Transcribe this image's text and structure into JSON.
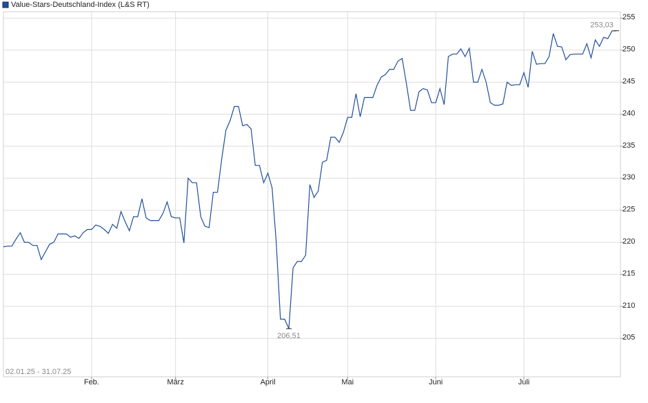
{
  "chart_data": {
    "type": "line",
    "title": "Value-Stars-Deutschland-Index (L&S RT)",
    "subtitle": "02.01.25 - 31.07.25",
    "series": [
      {
        "name": "Value-Stars-Deutschland-Index (L&S RT)",
        "color": "#1f4e99",
        "values": [
          219.3,
          219.4,
          219.4,
          220.5,
          221.5,
          220.0,
          220.0,
          219.5,
          219.5,
          217.3,
          218.5,
          219.7,
          220.0,
          221.3,
          221.3,
          221.3,
          220.8,
          221.0,
          220.6,
          221.5,
          222.0,
          222.0,
          222.7,
          222.5,
          222.0,
          221.4,
          222.8,
          222.2,
          224.8,
          223.2,
          221.8,
          224.0,
          224.0,
          226.8,
          223.8,
          223.4,
          223.4,
          223.4,
          224.5,
          226.3,
          224.0,
          223.8,
          223.8,
          219.9,
          230.0,
          229.3,
          229.3,
          224.0,
          222.5,
          222.3,
          227.8,
          227.8,
          233.0,
          237.5,
          239.0,
          241.2,
          241.2,
          238.2,
          238.4,
          237.7,
          232.0,
          232.0,
          229.3,
          230.8,
          228.5,
          220.0,
          208.0,
          208.0,
          206.51,
          216.0,
          217.0,
          217.0,
          218.0,
          229.0,
          227.0,
          228.0,
          232.5,
          232.8,
          236.4,
          236.4,
          235.6,
          237.2,
          239.5,
          239.5,
          243.2,
          239.6,
          242.6,
          242.6,
          242.6,
          244.5,
          245.8,
          246.2,
          247.0,
          247.0,
          248.3,
          248.7,
          244.8,
          240.6,
          240.6,
          243.5,
          244.0,
          243.8,
          241.8,
          241.8,
          244.0,
          241.5,
          249.0,
          249.4,
          249.4,
          250.2,
          249.0,
          250.3,
          245.0,
          245.0,
          247.0,
          245.0,
          241.8,
          241.4,
          241.4,
          241.6,
          245.0,
          244.5,
          244.6,
          244.6,
          246.5,
          244.2,
          249.8,
          247.8,
          247.9,
          247.9,
          249.0,
          252.6,
          250.6,
          250.5,
          248.5,
          249.3,
          249.4,
          249.4,
          249.4,
          251.0,
          248.8,
          251.6,
          250.6,
          252.0,
          251.8,
          253.0,
          253.03
        ]
      }
    ],
    "annotations": [
      {
        "label": "253,03",
        "value": 253.03
      },
      {
        "label": "206,51",
        "value": 206.51
      }
    ],
    "xlim": [
      0,
      147
    ],
    "xticks": [
      {
        "value": 21,
        "label": "Feb."
      },
      {
        "value": 41,
        "label": "März"
      },
      {
        "value": 63,
        "label": "April"
      },
      {
        "value": 82,
        "label": "Mai"
      },
      {
        "value": 103,
        "label": "Juni"
      },
      {
        "value": 124,
        "label": "Juli"
      }
    ],
    "ylim": [
      199,
      256
    ],
    "yticks": [
      205,
      210,
      215,
      220,
      225,
      230,
      235,
      240,
      245,
      250,
      255
    ],
    "grid": true
  }
}
